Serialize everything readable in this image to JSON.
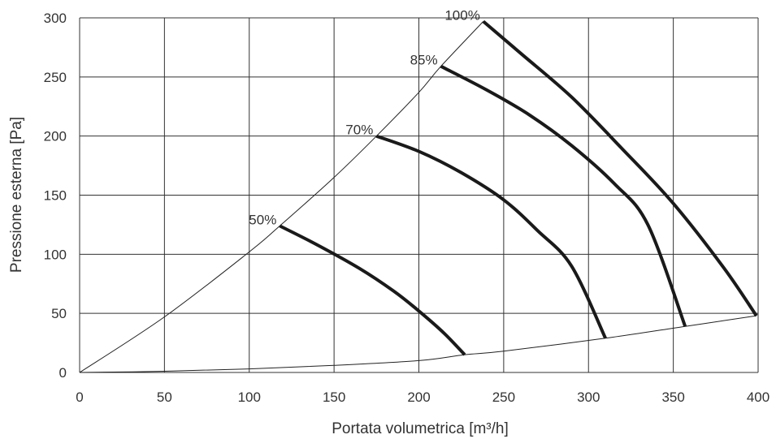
{
  "chart_data": {
    "type": "line",
    "title": "",
    "xlabel": "Portata volumetrica [m³/h]",
    "ylabel": "Pressione esterna [Pa]",
    "xlim": [
      0,
      400
    ],
    "ylim": [
      0,
      300
    ],
    "xticks": [
      0,
      50,
      100,
      150,
      200,
      250,
      300,
      350,
      400
    ],
    "xtick_labels": [
      "0",
      "50",
      "100",
      "150",
      "200",
      "250",
      "300",
      "350",
      "400"
    ],
    "yticks": [
      0,
      50,
      100,
      150,
      200,
      250,
      300
    ],
    "ytick_labels": [
      "0",
      "50",
      "100",
      "150",
      "200",
      "250",
      "300"
    ],
    "grid": true,
    "series": [
      {
        "name": "50%",
        "x": [
          118,
          140,
          165,
          185,
          200,
          215,
          227
        ],
        "y": [
          124,
          108,
          88,
          69,
          52,
          33,
          15
        ]
      },
      {
        "name": "70%",
        "x": [
          175,
          200,
          225,
          250,
          270,
          290,
          310
        ],
        "y": [
          200,
          187,
          169,
          146,
          120,
          90,
          29
        ]
      },
      {
        "name": "85%",
        "x": [
          213,
          240,
          265,
          290,
          315,
          335,
          357
        ],
        "y": [
          259,
          239,
          218,
          192,
          160,
          125,
          39
        ]
      },
      {
        "name": "100%",
        "x": [
          238,
          260,
          290,
          320,
          350,
          380,
          399
        ],
        "y": [
          297,
          270,
          233,
          189,
          143,
          88,
          48
        ]
      }
    ],
    "envelope_upper": {
      "x": [
        0,
        50,
        100,
        118,
        150,
        175,
        200,
        213,
        238
      ],
      "y": [
        0,
        47,
        102,
        124,
        165,
        200,
        237,
        259,
        297
      ]
    },
    "envelope_lower": {
      "x": [
        0,
        50,
        100,
        150,
        200,
        227,
        250,
        310,
        357,
        399
      ],
      "y": [
        0,
        1,
        3,
        6,
        10,
        15,
        18,
        29,
        39,
        48
      ]
    }
  }
}
